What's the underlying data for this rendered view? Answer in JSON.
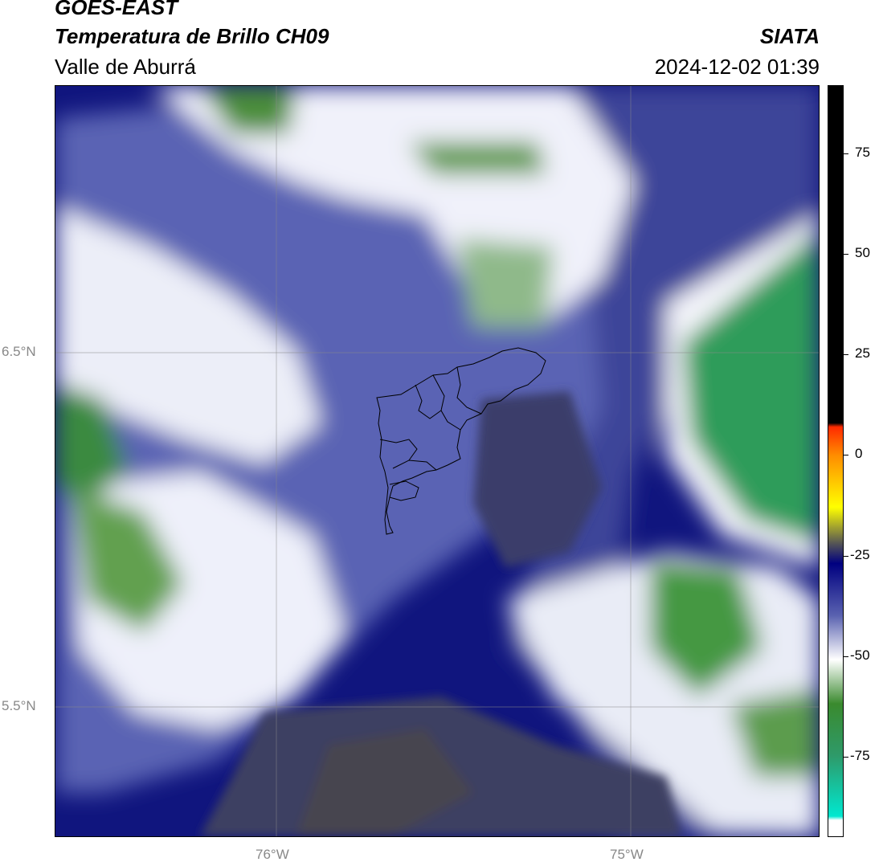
{
  "header": {
    "satellite": "GOES-EAST",
    "product": "Temperatura de Brillo CH09",
    "region": "Valle de Aburrá",
    "agency": "SIATA",
    "datetime": "2024-12-02 01:39"
  },
  "axes": {
    "lat_labels": [
      "6.5°N",
      "5.5°N"
    ],
    "lon_labels": [
      "76°W",
      "75°W"
    ],
    "gridlines": true
  },
  "colorbar": {
    "ticks": [
      "75",
      "50",
      "25",
      "0",
      "-25",
      "-50",
      "-75"
    ],
    "stops": [
      {
        "v": 92,
        "color": "#000000"
      },
      {
        "v": 8,
        "color": "#000000"
      },
      {
        "v": 7,
        "color": "#ff2a00"
      },
      {
        "v": 0,
        "color": "#ff8c00"
      },
      {
        "v": -13,
        "color": "#ffff00"
      },
      {
        "v": -22,
        "color": "#555555"
      },
      {
        "v": -27,
        "color": "#000080"
      },
      {
        "v": -40,
        "color": "#5a62b0"
      },
      {
        "v": -51,
        "color": "#ffffff"
      },
      {
        "v": -62,
        "color": "#3a8a2e"
      },
      {
        "v": -75,
        "color": "#2e9a6a"
      },
      {
        "v": -90,
        "color": "#00e8d0"
      },
      {
        "v": -91,
        "color": "#ffffff"
      },
      {
        "v": -95,
        "color": "#ffffff"
      }
    ]
  }
}
